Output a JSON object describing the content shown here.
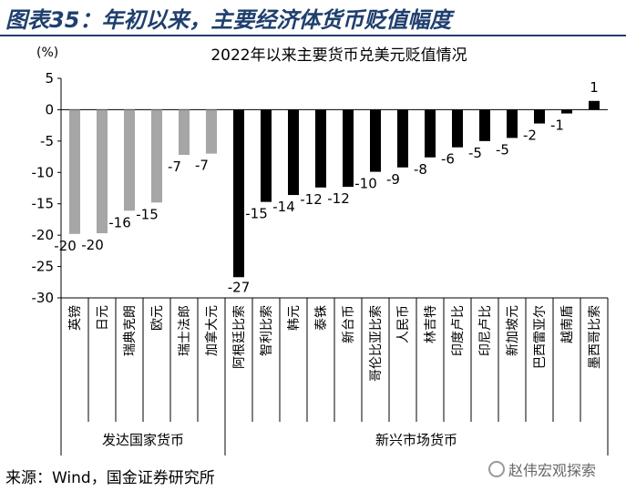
{
  "figure_title": "图表35：年初以来，主要经济体货币贬值幅度",
  "source": "来源：Wind，国金证券研究所",
  "watermark": "赵伟宏观探索",
  "colors": {
    "title": "#1f3f6e",
    "developed": "#a6a6a6",
    "emerging": "#000000"
  },
  "chart_data": {
    "type": "bar",
    "title": "2022年以来主要货币兑美元贬值情况",
    "ylabel": "(%)",
    "ylim": [
      -30,
      5
    ],
    "yticks": [
      5,
      0,
      -5,
      -10,
      -15,
      -20,
      -25,
      -30
    ],
    "grid": false,
    "categories": [
      "英镑",
      "日元",
      "瑞典克朗",
      "欧元",
      "瑞士法郎",
      "加拿大元",
      "阿根廷比索",
      "智利比索",
      "韩元",
      "泰铢",
      "新台币",
      "哥伦比亚比索",
      "人民币",
      "林吉特",
      "印度卢比",
      "印尼卢比",
      "新加坡元",
      "巴西雷亚尔",
      "越南盾",
      "墨西哥比索"
    ],
    "values": [
      -19.8,
      -19.7,
      -16.1,
      -14.8,
      -7.2,
      -7.0,
      -26.7,
      -14.7,
      -13.6,
      -12.4,
      -12.3,
      -9.9,
      -9.2,
      -7.6,
      -6.0,
      -5.0,
      -4.5,
      -2.2,
      -0.6,
      1.4
    ],
    "data_labels": [
      "-20",
      "-20",
      "-16",
      "-15",
      "-7",
      "-7",
      "-27",
      "-15",
      "-14",
      "-12",
      "-12",
      "-10",
      "-9",
      "-8",
      "-6",
      "-5",
      "-5",
      "-2",
      "-1",
      "1"
    ],
    "groups": [
      {
        "name": "发达国家货币",
        "count": 6
      },
      {
        "name": "新兴市场货币",
        "count": 14
      }
    ]
  }
}
